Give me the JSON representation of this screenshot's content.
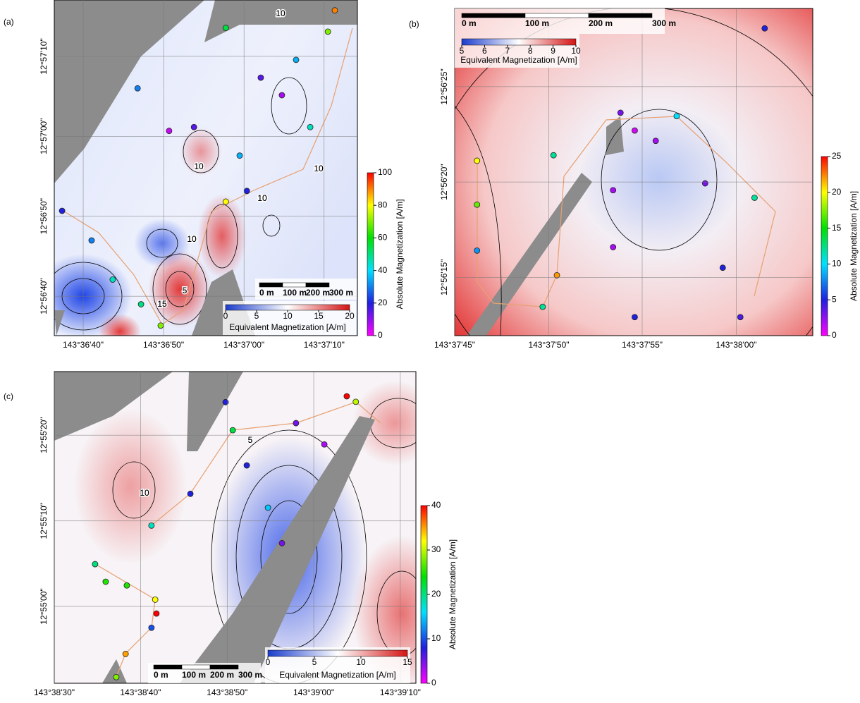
{
  "chart_data": [
    {
      "type": "scatter",
      "panel_label": "(a)",
      "x": [
        143.61038,
        143.6114,
        143.61213,
        143.61311,
        143.61379,
        143.61299,
        143.61408,
        143.61494,
        143.61652,
        143.61798,
        143.61896,
        143.61604,
        143.61957,
        143.61981,
        143.61604,
        143.61677,
        143.61847,
        143.61725
      ],
      "y": [
        12.94741,
        12.94638,
        12.94502,
        12.94416,
        12.94342,
        12.95167,
        12.95019,
        12.95032,
        12.94933,
        12.95143,
        12.95032,
        12.95377,
        12.95364,
        12.95438,
        12.94773,
        12.9481,
        12.95266,
        12.95204
      ],
      "values": [
        20,
        30,
        45,
        50,
        70,
        30,
        5,
        15,
        35,
        8,
        45,
        55,
        70,
        90,
        80,
        20,
        35,
        15
      ],
      "xlim": [
        143.61011,
        143.62059
      ],
      "ylim": [
        12.94307,
        12.95474
      ],
      "xticks": [
        {
          "value": 143.61111,
          "label": "143°36'40\""
        },
        {
          "value": 143.61389,
          "label": "143°36'50\""
        },
        {
          "value": 143.61667,
          "label": "143°37'00\""
        },
        {
          "value": 143.61944,
          "label": "143°37'10\""
        }
      ],
      "yticks": [
        {
          "value": 12.95278,
          "label": "12°57'10\""
        },
        {
          "value": 12.95,
          "label": "12°57'00\""
        },
        {
          "value": 12.94722,
          "label": "12°56'50\""
        },
        {
          "value": 12.94444,
          "label": "12°56'40\""
        }
      ],
      "colorbar": {
        "label": "Absolute Magnetization [A/m]",
        "lim": [
          0,
          100
        ],
        "ticks": [
          0,
          20,
          40,
          60,
          80,
          100
        ],
        "colormap": [
          "#ff00ff",
          "#2020e0",
          "#00e0ff",
          "#00e000",
          "#ffff00",
          "#ff0000"
        ]
      },
      "inset_colorbar": {
        "label": "Equivalent Magnetization [A/m]",
        "lim": [
          0,
          20
        ],
        "ticks": [
          0,
          5,
          10,
          15,
          20
        ],
        "colormap": [
          "#1a3ccc",
          "#ffffff",
          "#d41414"
        ]
      },
      "scale_bar": [
        "0 m",
        "100 m",
        "200 m",
        "300 m"
      ],
      "contour_labels": [
        "10",
        "10",
        "10",
        "10",
        "5",
        "15",
        "10"
      ]
    },
    {
      "type": "scatter",
      "panel_label": "(b)",
      "x": [
        143.6295,
        143.6295,
        143.6295,
        143.63068,
        143.63047,
        143.63063,
        143.63375,
        143.63162,
        143.63183,
        143.63214,
        143.63245,
        143.63151,
        143.63287,
        143.6336,
        143.63183,
        143.63339,
        143.63151,
        143.63313
      ],
      "y": [
        12.9392,
        12.93856,
        12.93789,
        12.93753,
        12.93707,
        12.93928,
        12.94113,
        12.9399,
        12.93964,
        12.93949,
        12.93985,
        12.93877,
        12.93887,
        12.93866,
        12.93692,
        12.93692,
        12.93794,
        12.93764
      ],
      "values": [
        20,
        17,
        8,
        22,
        12,
        12,
        5,
        3,
        1,
        2,
        10,
        2,
        3,
        12,
        5,
        4,
        2,
        5
      ],
      "xlim": [
        143.62917,
        143.63446
      ],
      "ylim": [
        12.93665,
        12.94142
      ],
      "xticks": [
        {
          "value": 143.62917,
          "label": "143°37'45\""
        },
        {
          "value": 143.63056,
          "label": "143°37'50\""
        },
        {
          "value": 143.63194,
          "label": "143°37'55\""
        },
        {
          "value": 143.63333,
          "label": "143°38'00\""
        }
      ],
      "yticks": [
        {
          "value": 12.94028,
          "label": "12°56'25\""
        },
        {
          "value": 12.93889,
          "label": "12°56'20\""
        },
        {
          "value": 12.9375,
          "label": "12°56'15\""
        }
      ],
      "colorbar": {
        "label": "Absolute Magnetization [A/m]",
        "lim": [
          0,
          25
        ],
        "ticks": [
          0,
          5,
          10,
          15,
          20,
          25
        ],
        "colormap": [
          "#ff00ff",
          "#2020e0",
          "#00e0ff",
          "#00e000",
          "#ffff00",
          "#ff0000"
        ]
      },
      "inset_colorbar": {
        "label": "Equivalent Magnetization [A/m]",
        "lim": [
          5,
          10
        ],
        "ticks": [
          5,
          6,
          7,
          8,
          9,
          10
        ],
        "colormap": [
          "#1a3ccc",
          "#ffffff",
          "#d41414"
        ]
      },
      "scale_bar": [
        "0 m",
        "100 m",
        "200 m",
        "300 m"
      ],
      "contour_labels": []
    },
    {
      "type": "scatter",
      "panel_label": "(c)",
      "x": [
        143.64298,
        143.64332,
        143.644,
        143.64491,
        143.64495,
        143.64479,
        143.64396,
        143.64366,
        143.64479,
        143.64604,
        143.64717,
        143.6474,
        143.64785,
        143.64853,
        143.64943,
        143.65034,
        143.65106,
        143.65135,
        143.64898
      ],
      "y": [
        12.91804,
        12.91747,
        12.91735,
        12.91689,
        12.91644,
        12.91598,
        12.91513,
        12.91438,
        12.91929,
        12.92032,
        12.92329,
        12.92238,
        12.92124,
        12.91987,
        12.92261,
        12.92192,
        12.92348,
        12.9233,
        12.91872
      ],
      "values": [
        20,
        25,
        25,
        32,
        40,
        10,
        35,
        28,
        18,
        8,
        8,
        22,
        8,
        15,
        5,
        3,
        40,
        30,
        5
      ],
      "xlim": [
        143.64167,
        143.65328
      ],
      "ylim": [
        12.91418,
        12.92428
      ],
      "xticks": [
        {
          "value": 143.64167,
          "label": "143°38'30\""
        },
        {
          "value": 143.64444,
          "label": "143°38'40\""
        },
        {
          "value": 143.64722,
          "label": "143°38'50\""
        },
        {
          "value": 143.65,
          "label": "143°39'00\""
        },
        {
          "value": 143.65278,
          "label": "143°39'10\""
        }
      ],
      "yticks": [
        {
          "value": 12.92222,
          "label": "12°55'20\""
        },
        {
          "value": 12.91944,
          "label": "12°55'10\""
        },
        {
          "value": 12.91667,
          "label": "12°55'00\""
        }
      ],
      "colorbar": {
        "label": "Absolute Magnetization [A/m]",
        "lim": [
          0,
          40
        ],
        "ticks": [
          0,
          10,
          20,
          30,
          40
        ],
        "colormap": [
          "#ff00ff",
          "#2020e0",
          "#00e0ff",
          "#00e000",
          "#ffff00",
          "#ff0000"
        ]
      },
      "inset_colorbar": {
        "label": "Equivalent Magnetization [A/m]",
        "lim": [
          0,
          15
        ],
        "ticks": [
          0,
          5,
          10,
          15
        ],
        "colormap": [
          "#1a3ccc",
          "#ffffff",
          "#d41414"
        ]
      },
      "scale_bar": [
        "0 m",
        "100 m",
        "200 m",
        "300 m"
      ],
      "contour_labels": [
        "10",
        "5"
      ]
    }
  ]
}
